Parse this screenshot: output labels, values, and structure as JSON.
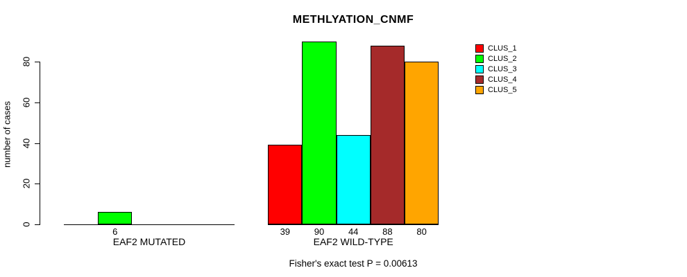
{
  "title": "METHLYATION_CNMF",
  "annotation": "Fisher's exact test P = 0.00613",
  "y_axis": {
    "label": "number of cases",
    "tick_labels": [
      "0",
      "20",
      "40",
      "60",
      "80"
    ]
  },
  "legend": {
    "items": [
      {
        "label": "CLUS_1",
        "color": "#FF0000"
      },
      {
        "label": "CLUS_2",
        "color": "#00FF00"
      },
      {
        "label": "CLUS_3",
        "color": "#00FFFF"
      },
      {
        "label": "CLUS_4",
        "color": "#A52A2A"
      },
      {
        "label": "CLUS_5",
        "color": "#FFA500"
      }
    ]
  },
  "chart_data": {
    "type": "bar",
    "title": "METHLYATION_CNMF",
    "xlabel": "",
    "ylabel": "number of cases",
    "ylim": [
      0,
      90
    ],
    "yticks": [
      0,
      20,
      40,
      60,
      80
    ],
    "grid": false,
    "legend_position": "right",
    "series_names": [
      "CLUS_1",
      "CLUS_2",
      "CLUS_3",
      "CLUS_4",
      "CLUS_5"
    ],
    "colors": [
      "#FF0000",
      "#00FF00",
      "#00FFFF",
      "#A52A2A",
      "#FFA500"
    ],
    "groups": [
      {
        "label": "EAF2 MUTATED",
        "values": [
          0,
          6,
          0,
          0,
          0
        ],
        "shown_value_labels": [
          "6"
        ]
      },
      {
        "label": "EAF2 WILD-TYPE",
        "values": [
          39,
          90,
          44,
          88,
          80
        ],
        "shown_value_labels": [
          "39",
          "90",
          "44",
          "88",
          "80"
        ]
      }
    ],
    "annotation": "Fisher's exact test P = 0.00613"
  }
}
